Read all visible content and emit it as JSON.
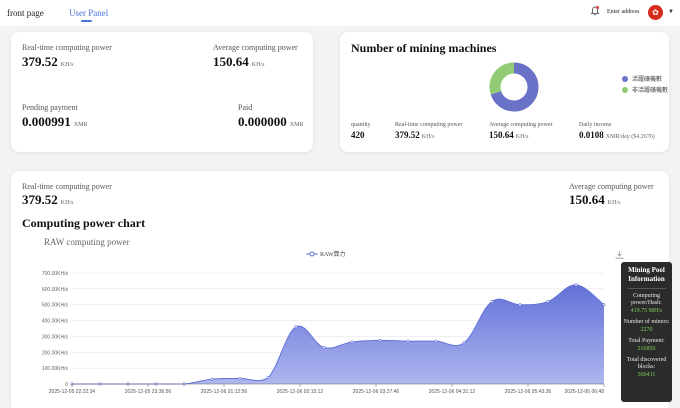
{
  "nav": {
    "front_page": "front page",
    "user_panel": "User Panel",
    "enter_address": "Enter address"
  },
  "card1": {
    "realtime_label": "Real-time computing power",
    "realtime_value": "379.52",
    "realtime_unit": "KH/s",
    "average_label": "Average computing power",
    "average_value": "150.64",
    "average_unit": "KH/s",
    "pending_label": "Pending payment",
    "pending_value": "0.000991",
    "pending_unit": "XMR",
    "paid_label": "Paid",
    "paid_value": "0.000000",
    "paid_unit": "XMR"
  },
  "card2": {
    "title": "Number of mining machines",
    "legend": [
      "活躍礦機數",
      "非活躍礦機數"
    ],
    "colors": {
      "active": "#6a72c8",
      "inactive": "#91cc75"
    },
    "donut": {
      "active_fraction": 0.7,
      "inactive_fraction": 0.3
    },
    "quantity_label": "quantity",
    "quantity_value": "420",
    "realtime_label": "Real-time computing power",
    "realtime_value": "379.52",
    "realtime_unit": "KH/s",
    "average_label": "Average computing power",
    "average_value": "150.64",
    "average_unit": "KH/s",
    "income_label": "Daily income",
    "income_value": "0.0108",
    "income_unit": "XMR/day ($4.2676)"
  },
  "card3": {
    "realtime_label": "Real-time computing power",
    "realtime_value": "379.52",
    "realtime_unit": "KH/s",
    "average_label": "Average computing power",
    "average_value": "150.64",
    "average_unit": "KH/s",
    "chart_heading": "Computing power chart",
    "chart_subtitle": "RAW computing power"
  },
  "chart_data": {
    "type": "area",
    "title": "RAW computing power",
    "series": [
      {
        "name": "RAW算力",
        "color": "#6272d8",
        "values": [
          0,
          0,
          0,
          0,
          0,
          30,
          35,
          40,
          360,
          230,
          265,
          275,
          270,
          270,
          260,
          520,
          500,
          520,
          625,
          500
        ]
      }
    ],
    "x": [
      "2025-12-05 22:22:34",
      "",
      "2025-12-05 23:36:56",
      "",
      "",
      "2025-12-06 01:12:56",
      "",
      "",
      "2025-12-06 02:15:12",
      "",
      "2025-12-06 03:27:46",
      "",
      "",
      "2025-12-06 04:31:12",
      "",
      "2025-12-06 05:43:36",
      "",
      "",
      "",
      "2025-12-06 06:48"
    ],
    "x_tick_labels": [
      "2025-12-05 22:22:34",
      "2025-12-05 23:36:56",
      "2025-12-06 01:12:56",
      "2025-12-06 02:15:12",
      "2025-12-06 03:27:46",
      "2025-12-06 04:31:12",
      "2025-12-06 05:43:36",
      "2025-12-06 06:48"
    ],
    "y_tick_labels": [
      "0",
      "100.00KH/s",
      "200.00KH/s",
      "300.00KH/s",
      "400.00KH/s",
      "500.00KH/s",
      "600.00KH/s",
      "700.00KH/s"
    ],
    "ylim": [
      0,
      700
    ],
    "ylabel": "",
    "xlabel": "",
    "grid": true,
    "legend": "top-center"
  },
  "pool": {
    "title": "Mining Pool Information",
    "hash_label": "Computing power/Hash:",
    "hash_value": "419.75 MH/s",
    "miners_label": "Number of miners:",
    "miners_value": "2270",
    "payment_label": "Total Payment:",
    "payment_value": "316856",
    "blocks_label": "Total discovered blocks:",
    "blocks_value": "366411"
  }
}
